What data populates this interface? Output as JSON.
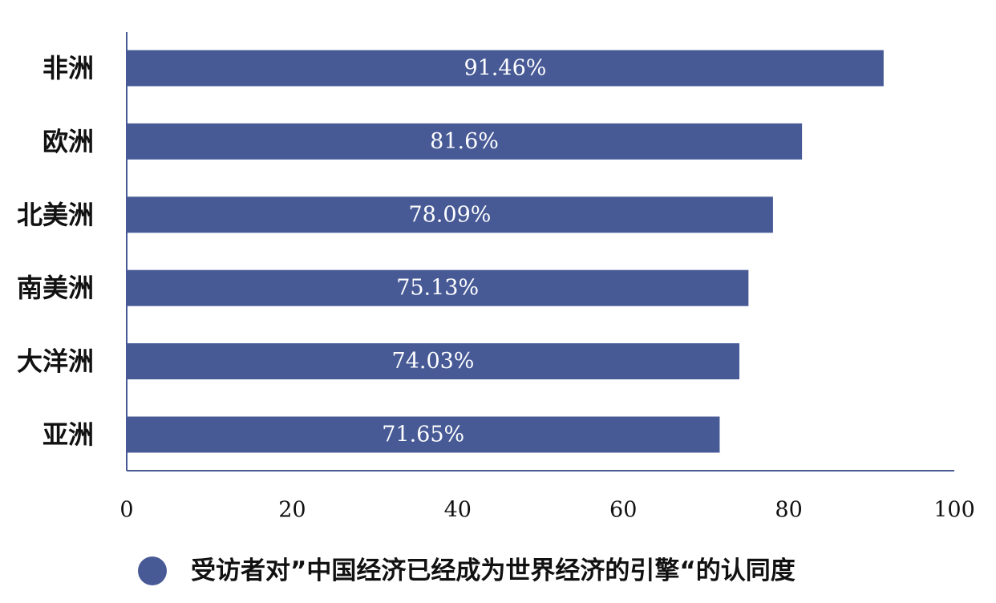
{
  "chart_data": {
    "type": "bar",
    "orientation": "horizontal",
    "categories": [
      "非洲",
      "欧洲",
      "北美洲",
      "南美洲",
      "大洋洲",
      "亚洲"
    ],
    "series": [
      {
        "name": "受访者对”中国经济已经成为世界经济的引擎“的认同度",
        "values": [
          91.46,
          81.6,
          78.09,
          75.13,
          74.03,
          71.65
        ],
        "data_labels": [
          "91.46%",
          "81.6%",
          "78.09%",
          "75.13%",
          "74.03%",
          "71.65%"
        ],
        "color": "#475a96"
      }
    ],
    "xlim": [
      0,
      100
    ],
    "x_ticks": [
      0,
      20,
      40,
      60,
      80,
      100
    ],
    "x_tick_labels": [
      "0",
      "20",
      "40",
      "60",
      "80",
      "100"
    ],
    "grid": false,
    "legend_position": "bottom-center",
    "axis_color": "#475a96"
  }
}
